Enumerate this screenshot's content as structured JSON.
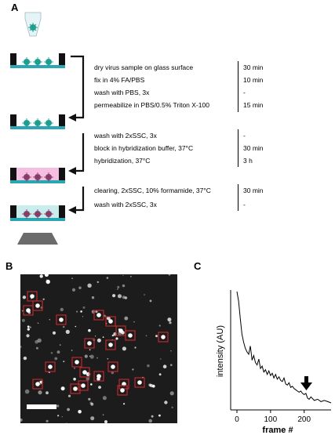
{
  "panels": {
    "a": "A",
    "b": "B",
    "c": "C"
  },
  "protocol": {
    "group1": [
      {
        "step": "dry virus sample on glass surface",
        "duration": "30 min"
      },
      {
        "step": "fix in 4% FA/PBS",
        "duration": "10 min"
      },
      {
        "step": "wash with PBS, 3x",
        "duration": "-"
      },
      {
        "step": "permeabilize in PBS/0.5% Triton X-100",
        "duration": "15 min"
      }
    ],
    "group2": [
      {
        "step": "wash with 2xSSC, 3x",
        "duration": "-"
      },
      {
        "step": "block in hybridization buffer, 37°C",
        "duration": "30 min"
      },
      {
        "step": "hybridization, 37°C",
        "duration": "3 h"
      }
    ],
    "group3": [
      {
        "step": "clearing, 2xSSC, 10% formamide, 37°C",
        "duration": "30 min"
      },
      {
        "step": "wash with 2xSSC, 3x",
        "duration": "-"
      }
    ]
  },
  "colors": {
    "glass": "#2aa7b3",
    "virus": "#1f9f8f",
    "hyb_buffer": "#f4bfe0",
    "clearing_buffer": "#c9ecec",
    "wall": "#111111",
    "roi": "#c0262d"
  },
  "chart_data": {
    "type": "line",
    "xlabel": "frame #",
    "ylabel": "intensity (AU)",
    "xlim": [
      0,
      280
    ],
    "xticks": [
      0,
      100,
      200
    ],
    "xtick_labels": [
      "0",
      "100",
      "200"
    ],
    "annotation": "arrow at frame ~205 indicating bleaching step",
    "series": [
      {
        "x": [
          0,
          5,
          10,
          15,
          20,
          25,
          30,
          35,
          40,
          45,
          50,
          55,
          60,
          65,
          70,
          75,
          80,
          85,
          90,
          95,
          100,
          105,
          110,
          115,
          120,
          125,
          130,
          135,
          140,
          145,
          150,
          155,
          160,
          165,
          170,
          175,
          180,
          185,
          190,
          195,
          200,
          205,
          210,
          215,
          220,
          230,
          240,
          250,
          260,
          270,
          280
        ],
        "values": [
          98,
          90,
          75,
          62,
          55,
          50,
          47,
          45,
          52,
          40,
          44,
          38,
          36,
          41,
          33,
          35,
          30,
          32,
          28,
          31,
          27,
          29,
          25,
          28,
          24,
          26,
          23,
          22,
          25,
          20,
          19,
          21,
          17,
          18,
          16,
          15,
          14,
          13,
          14,
          12,
          11,
          12,
          8,
          7,
          9,
          6,
          7,
          5,
          6,
          5,
          4
        ]
      }
    ]
  }
}
